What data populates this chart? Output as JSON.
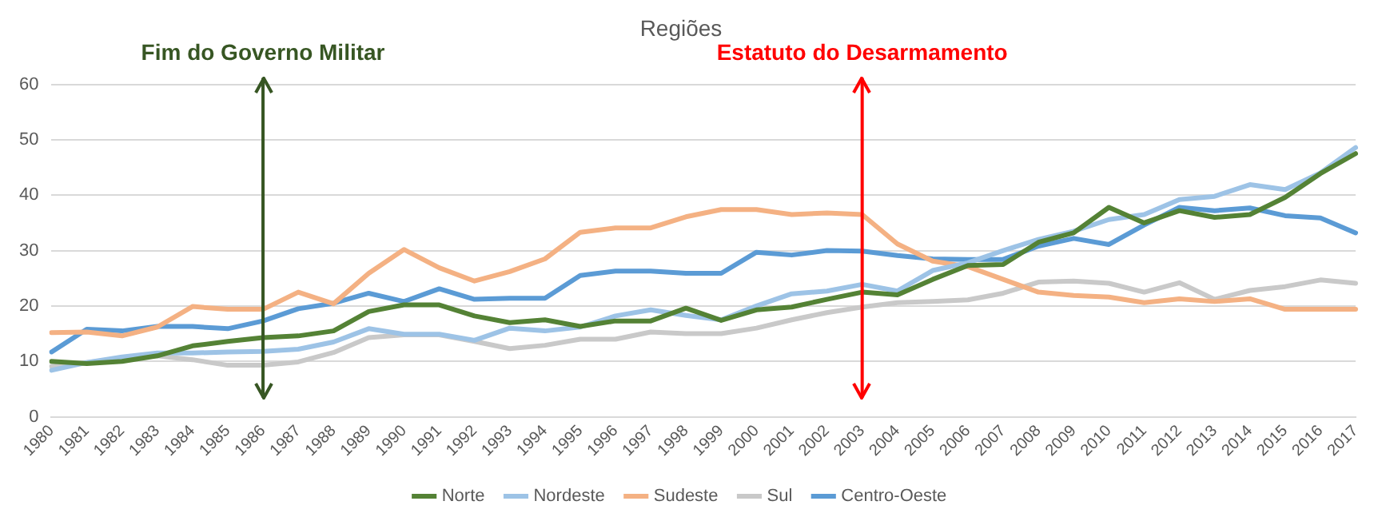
{
  "chart_data": {
    "type": "line",
    "title": "Regiões",
    "categories": [
      "1980",
      "1981",
      "1982",
      "1983",
      "1984",
      "1985",
      "1986",
      "1987",
      "1988",
      "1989",
      "1990",
      "1991",
      "1992",
      "1993",
      "1994",
      "1995",
      "1996",
      "1997",
      "1998",
      "1999",
      "2000",
      "2001",
      "2002",
      "2003",
      "2004",
      "2005",
      "2006",
      "2007",
      "2008",
      "2009",
      "2010",
      "2011",
      "2012",
      "2013",
      "2014",
      "2015",
      "2016",
      "2017"
    ],
    "series": [
      {
        "name": "Norte",
        "color": "#548235",
        "values": [
          10,
          9.6,
          10,
          11,
          12.8,
          13.6,
          14.3,
          14.6,
          15.5,
          19,
          20.2,
          20.2,
          18.2,
          17,
          17.5,
          16.3,
          17.3,
          17.3,
          19.6,
          17.4,
          19.3,
          19.8,
          21.2,
          22.5,
          22,
          24.8,
          27.3,
          27.5,
          31.5,
          33.2,
          37.8,
          35,
          37.2,
          36,
          36.5,
          39.6,
          43.9,
          47.5
        ]
      },
      {
        "name": "Nordeste",
        "color": "#9dc3e6",
        "values": [
          8.4,
          9.8,
          10.8,
          11.5,
          11.5,
          11.7,
          11.8,
          12.2,
          13.5,
          15.9,
          14.9,
          14.9,
          13.8,
          16,
          15.5,
          16.2,
          18.2,
          19.3,
          18.3,
          17.5,
          20,
          22.2,
          22.7,
          23.9,
          22.7,
          26.4,
          27.8,
          30,
          32,
          33.5,
          35.6,
          36.5,
          39.2,
          39.8,
          41.9,
          41,
          44,
          48.6
        ]
      },
      {
        "name": "Sudeste",
        "color": "#f4b183",
        "values": [
          15.2,
          15.3,
          14.6,
          16.2,
          19.9,
          19.4,
          19.4,
          22.5,
          20.4,
          25.9,
          30.2,
          26.9,
          24.5,
          26.2,
          28.5,
          33.3,
          34.1,
          34.1,
          36.1,
          37.4,
          37.4,
          36.5,
          36.8,
          36.5,
          31.2,
          28.1,
          27.1,
          24.8,
          22.5,
          21.9,
          21.6,
          20.6,
          21.3,
          20.8,
          21.3,
          19.4,
          19.4,
          19.4
        ]
      },
      {
        "name": "Sul",
        "color": "#c9c9c9",
        "values": [
          9.1,
          9.8,
          10.5,
          11,
          10.3,
          9.3,
          9.3,
          9.9,
          11.6,
          14.3,
          14.8,
          14.8,
          13.6,
          12.3,
          12.9,
          14,
          14,
          15.3,
          15,
          15,
          16,
          17.5,
          18.8,
          19.8,
          20.6,
          20.8,
          21.1,
          22.3,
          24.3,
          24.5,
          24.1,
          22.5,
          24.2,
          21.2,
          22.8,
          23.5,
          24.7,
          24.1
        ]
      },
      {
        "name": "Centro-Oeste",
        "color": "#5b9bd5",
        "values": [
          11.7,
          15.8,
          15.5,
          16.3,
          16.3,
          15.9,
          17.3,
          19.5,
          20.5,
          22.3,
          20.8,
          23.1,
          21.2,
          21.4,
          21.4,
          25.5,
          26.3,
          26.3,
          25.9,
          25.9,
          29.7,
          29.2,
          30,
          29.9,
          29.1,
          28.5,
          28.4,
          28.4,
          30.8,
          32.2,
          31.1,
          34.6,
          37.8,
          37.2,
          37.7,
          36.3,
          35.9,
          33.2
        ]
      }
    ],
    "ylim": [
      0,
      60
    ],
    "yticks": [
      0,
      10,
      20,
      30,
      40,
      50,
      60
    ],
    "grid": "y",
    "legend": "bottom",
    "marker": "none",
    "line_style": "solid",
    "ref_lines": [
      {
        "axis": "x",
        "value": "1986",
        "label": "Fim do Governo Militar",
        "color": "#375623"
      },
      {
        "axis": "x",
        "value": "2003",
        "label": "Estatuto do Desarmamento",
        "color": "#ff0000"
      }
    ]
  }
}
